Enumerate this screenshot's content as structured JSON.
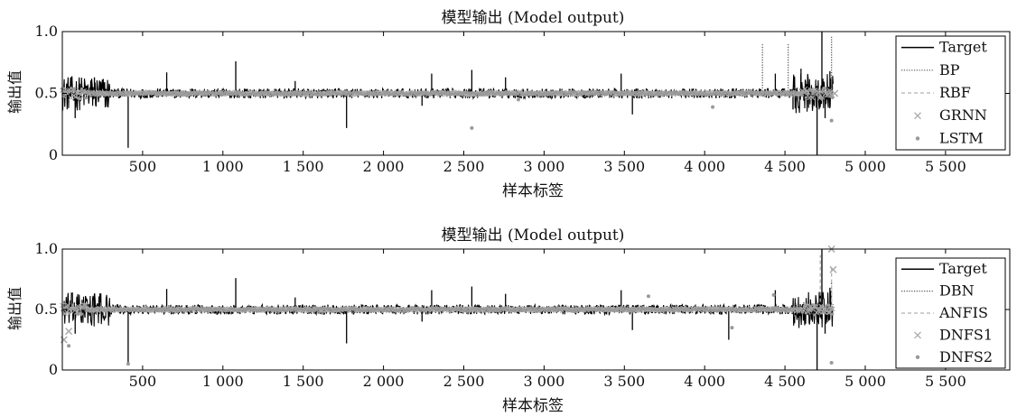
{
  "chart_data": [
    {
      "type": "line",
      "title": "模型输出 (Model output)",
      "xlabel": "样本标签",
      "ylabel": "输出值",
      "xlim": [
        0,
        5900
      ],
      "ylim": [
        0,
        1.0
      ],
      "xticks": [
        500,
        1000,
        1500,
        2000,
        2500,
        3000,
        3500,
        4000,
        4500,
        5000,
        5500
      ],
      "xtick_labels": [
        "500",
        "1 000",
        "1 500",
        "2 000",
        "2 500",
        "3 000",
        "3 500",
        "4 000",
        "4 500",
        "5 000",
        "5 500"
      ],
      "yticks": [
        0,
        0.5,
        1.0
      ],
      "ytick_labels": [
        "0",
        "0.5",
        "1.0"
      ],
      "grid": false,
      "legend_position": "right",
      "sample_count": 4800,
      "series": [
        {
          "name": "Target",
          "style": "solid",
          "color": "#000000",
          "baseline": 0.5,
          "spikes": [
            [
              80,
              0.3
            ],
            [
              200,
              0.63
            ],
            [
              410,
              0.06
            ],
            [
              650,
              0.67
            ],
            [
              1080,
              0.76
            ],
            [
              1450,
              0.6
            ],
            [
              1770,
              0.22
            ],
            [
              2240,
              0.4
            ],
            [
              2300,
              0.66
            ],
            [
              2550,
              0.69
            ],
            [
              2760,
              0.63
            ],
            [
              3480,
              0.66
            ],
            [
              3550,
              0.33
            ],
            [
              4440,
              0.66
            ],
            [
              4550,
              0.37
            ],
            [
              4600,
              0.7
            ],
            [
              4700,
              0.0
            ],
            [
              4730,
              1.0
            ],
            [
              4750,
              0.3
            ],
            [
              4780,
              0.68
            ]
          ]
        },
        {
          "name": "BP",
          "style": "dotted",
          "color": "#555555",
          "baseline": 0.5,
          "spikes": [
            [
              4360,
              0.9
            ],
            [
              4520,
              0.9
            ],
            [
              4790,
              0.96
            ]
          ]
        },
        {
          "name": "RBF",
          "style": "dashed",
          "color": "#b0b0b0",
          "baseline": 0.51,
          "spikes": []
        },
        {
          "name": "GRNN",
          "style": "marker-x",
          "color": "#aaaaaa",
          "baseline": 0.5,
          "spikes": [
            [
              4810,
              0.5
            ]
          ]
        },
        {
          "name": "LSTM",
          "style": "marker-dot",
          "color": "#999999",
          "baseline": 0.5,
          "spikes": [
            [
              2550,
              0.22
            ],
            [
              4050,
              0.39
            ],
            [
              4790,
              0.28
            ],
            [
              2840,
              0.45
            ]
          ]
        }
      ]
    },
    {
      "type": "line",
      "title": "模型输出 (Model output)",
      "xlabel": "样本标签",
      "ylabel": "输出值",
      "xlim": [
        0,
        5900
      ],
      "ylim": [
        0,
        1.0
      ],
      "xticks": [
        500,
        1000,
        1500,
        2000,
        2500,
        3000,
        3500,
        4000,
        4500,
        5000,
        5500
      ],
      "xtick_labels": [
        "500",
        "1 000",
        "1 500",
        "2 000",
        "2 500",
        "3 000",
        "3 500",
        "4 000",
        "4 500",
        "5 000",
        "5 500"
      ],
      "yticks": [
        0,
        0.5,
        1.0
      ],
      "ytick_labels": [
        "0",
        "0.5",
        "1.0"
      ],
      "grid": false,
      "legend_position": "right",
      "sample_count": 4800,
      "series": [
        {
          "name": "Target",
          "style": "solid",
          "color": "#000000",
          "baseline": 0.5,
          "spikes": [
            [
              80,
              0.3
            ],
            [
              200,
              0.63
            ],
            [
              410,
              0.06
            ],
            [
              650,
              0.67
            ],
            [
              1080,
              0.76
            ],
            [
              1450,
              0.6
            ],
            [
              1770,
              0.22
            ],
            [
              2240,
              0.4
            ],
            [
              2300,
              0.66
            ],
            [
              2550,
              0.69
            ],
            [
              2760,
              0.63
            ],
            [
              3480,
              0.66
            ],
            [
              3550,
              0.33
            ],
            [
              4150,
              0.25
            ],
            [
              4440,
              0.66
            ],
            [
              4700,
              0.0
            ],
            [
              4730,
              1.0
            ],
            [
              4750,
              0.3
            ],
            [
              4780,
              0.68
            ]
          ]
        },
        {
          "name": "DBN",
          "style": "dotted",
          "color": "#555555",
          "baseline": 0.5,
          "spikes": [
            [
              4790,
              0.72
            ]
          ]
        },
        {
          "name": "ANFIS",
          "style": "dashed",
          "color": "#b0b0b0",
          "baseline": 0.51,
          "spikes": [
            [
              4720,
              0.95
            ],
            [
              4790,
              0.85
            ]
          ]
        },
        {
          "name": "DNFS1",
          "style": "marker-x",
          "color": "#aaaaaa",
          "baseline": 0.5,
          "spikes": [
            [
              4790,
              1.0
            ],
            [
              4800,
              0.83
            ],
            [
              10,
              0.25
            ],
            [
              40,
              0.32
            ]
          ]
        },
        {
          "name": "DNFS2",
          "style": "marker-dot",
          "color": "#999999",
          "baseline": 0.5,
          "spikes": [
            [
              410,
              0.05
            ],
            [
              3650,
              0.61
            ],
            [
              4430,
              0.62
            ],
            [
              4790,
              0.06
            ],
            [
              40,
              0.2
            ],
            [
              4170,
              0.35
            ]
          ]
        }
      ]
    }
  ]
}
